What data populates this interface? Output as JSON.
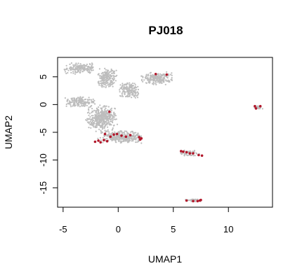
{
  "chart_data": {
    "type": "scatter",
    "title": "PJ018",
    "xlabel": "UMAP1",
    "ylabel": "UMAP2",
    "xlim": [
      -5.5,
      14
    ],
    "ylim": [
      -18.5,
      8.5
    ],
    "xticks": [
      -5,
      0,
      5,
      10
    ],
    "yticks": [
      5,
      0,
      -5,
      -10,
      -15
    ],
    "xtick_labels": [
      "-5",
      "0",
      "5",
      "10"
    ],
    "ytick_labels": [
      "5",
      "0",
      "-5",
      "-10",
      "-15"
    ],
    "grid": false,
    "legend": "none",
    "colors": {
      "background_cells": "#bdbdbd",
      "highlighted_cells": "#b2182b"
    },
    "series": [
      {
        "color": "#bdbdbd",
        "clusters": [
          {
            "x": [
              -5,
              -2
            ],
            "y": [
              5.5,
              7.5
            ]
          },
          {
            "x": [
              -2,
              0
            ],
            "y": [
              3,
              6.5
            ]
          },
          {
            "x": [
              0,
              2
            ],
            "y": [
              1,
              4
            ]
          },
          {
            "x": [
              2,
              5
            ],
            "y": [
              3.5,
              6
            ]
          },
          {
            "x": [
              -5,
              -2
            ],
            "y": [
              -0.5,
              1.5
            ]
          },
          {
            "x": [
              -3,
              0
            ],
            "y": [
              -5,
              0
            ]
          },
          {
            "x": [
              -2,
              2.5
            ],
            "y": [
              -7,
              -4.5
            ]
          },
          {
            "x": [
              5.5,
              7.5
            ],
            "y": [
              -9.3,
              -8.2
            ]
          },
          {
            "x": [
              6,
              7.5
            ],
            "y": [
              -17.5,
              -17
            ]
          },
          {
            "x": [
              12.2,
              13.2
            ],
            "y": [
              -0.8,
              -0.2
            ]
          }
        ]
      },
      {
        "color": "#b2182b",
        "points": [
          {
            "x": 3.4,
            "y": 5.5
          },
          {
            "x": 4.4,
            "y": 5.4
          },
          {
            "x": -0.8,
            "y": -1.3
          },
          {
            "x": -2.1,
            "y": -6.7
          },
          {
            "x": -1.8,
            "y": -6.5
          },
          {
            "x": -1.6,
            "y": -6.8
          },
          {
            "x": -1.3,
            "y": -6.4
          },
          {
            "x": -1.0,
            "y": -6.6
          },
          {
            "x": -0.7,
            "y": -5.8
          },
          {
            "x": -0.4,
            "y": -5.4
          },
          {
            "x": -0.1,
            "y": -5.3
          },
          {
            "x": 0.3,
            "y": -5.6
          },
          {
            "x": 0.7,
            "y": -5.8
          },
          {
            "x": 1.1,
            "y": -5.5
          },
          {
            "x": 1.9,
            "y": -5.9
          },
          {
            "x": 2.1,
            "y": -6.1
          },
          {
            "x": 2.0,
            "y": -6.3
          },
          {
            "x": -1.2,
            "y": -5.3
          },
          {
            "x": 5.7,
            "y": -8.4
          },
          {
            "x": 5.9,
            "y": -8.5
          },
          {
            "x": 6.2,
            "y": -8.6
          },
          {
            "x": 6.5,
            "y": -8.8
          },
          {
            "x": 6.8,
            "y": -8.8
          },
          {
            "x": 7.3,
            "y": -9.1
          },
          {
            "x": 7.6,
            "y": -9.2
          },
          {
            "x": 6.2,
            "y": -17.3
          },
          {
            "x": 6.8,
            "y": -17.4
          },
          {
            "x": 7.2,
            "y": -17.4
          },
          {
            "x": 7.4,
            "y": -17.3
          },
          {
            "x": 7.5,
            "y": -17.2
          },
          {
            "x": 12.4,
            "y": -0.3
          },
          {
            "x": 12.5,
            "y": -0.7
          },
          {
            "x": 12.9,
            "y": -0.3
          }
        ]
      }
    ]
  }
}
